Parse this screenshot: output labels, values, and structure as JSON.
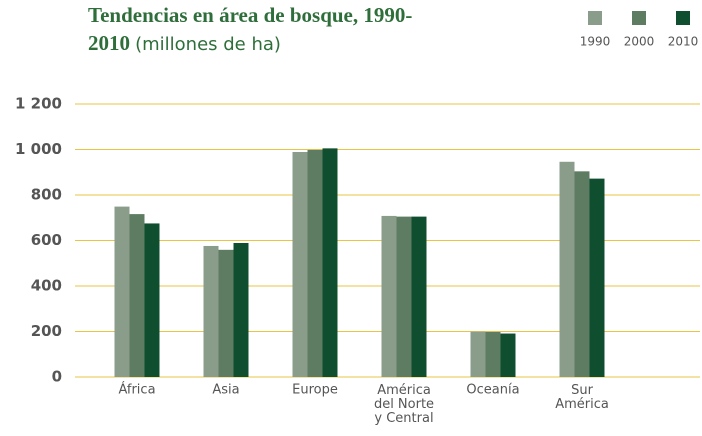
{
  "chart_data": {
    "type": "bar",
    "title": "Tendencias en área de bosque, 1990-2010",
    "subtitle": "(millones de ha)",
    "categories": [
      "África",
      "Asia",
      "Europe",
      "América\ndel Norte\ny Central",
      "Oceanía",
      "Sur\nAmérica"
    ],
    "series": [
      {
        "name": "1990",
        "color": "#8a9c8a",
        "values": [
          749,
          576,
          989,
          708,
          199,
          946
        ]
      },
      {
        "name": "2000",
        "color": "#5d7c62",
        "values": [
          716,
          559,
          998,
          705,
          198,
          904
        ]
      },
      {
        "name": "2010",
        "color": "#0f4f30",
        "values": [
          675,
          589,
          1005,
          705,
          191,
          872
        ]
      }
    ],
    "ylim": [
      0,
      1200
    ],
    "yticks": [
      0,
      200,
      400,
      600,
      800,
      {
        "value": 1000,
        "label": "1 000"
      },
      {
        "value": 1200,
        "label": "1 200"
      }
    ],
    "grid": true,
    "grid_color": "#e8c447",
    "legend": "top-right"
  }
}
